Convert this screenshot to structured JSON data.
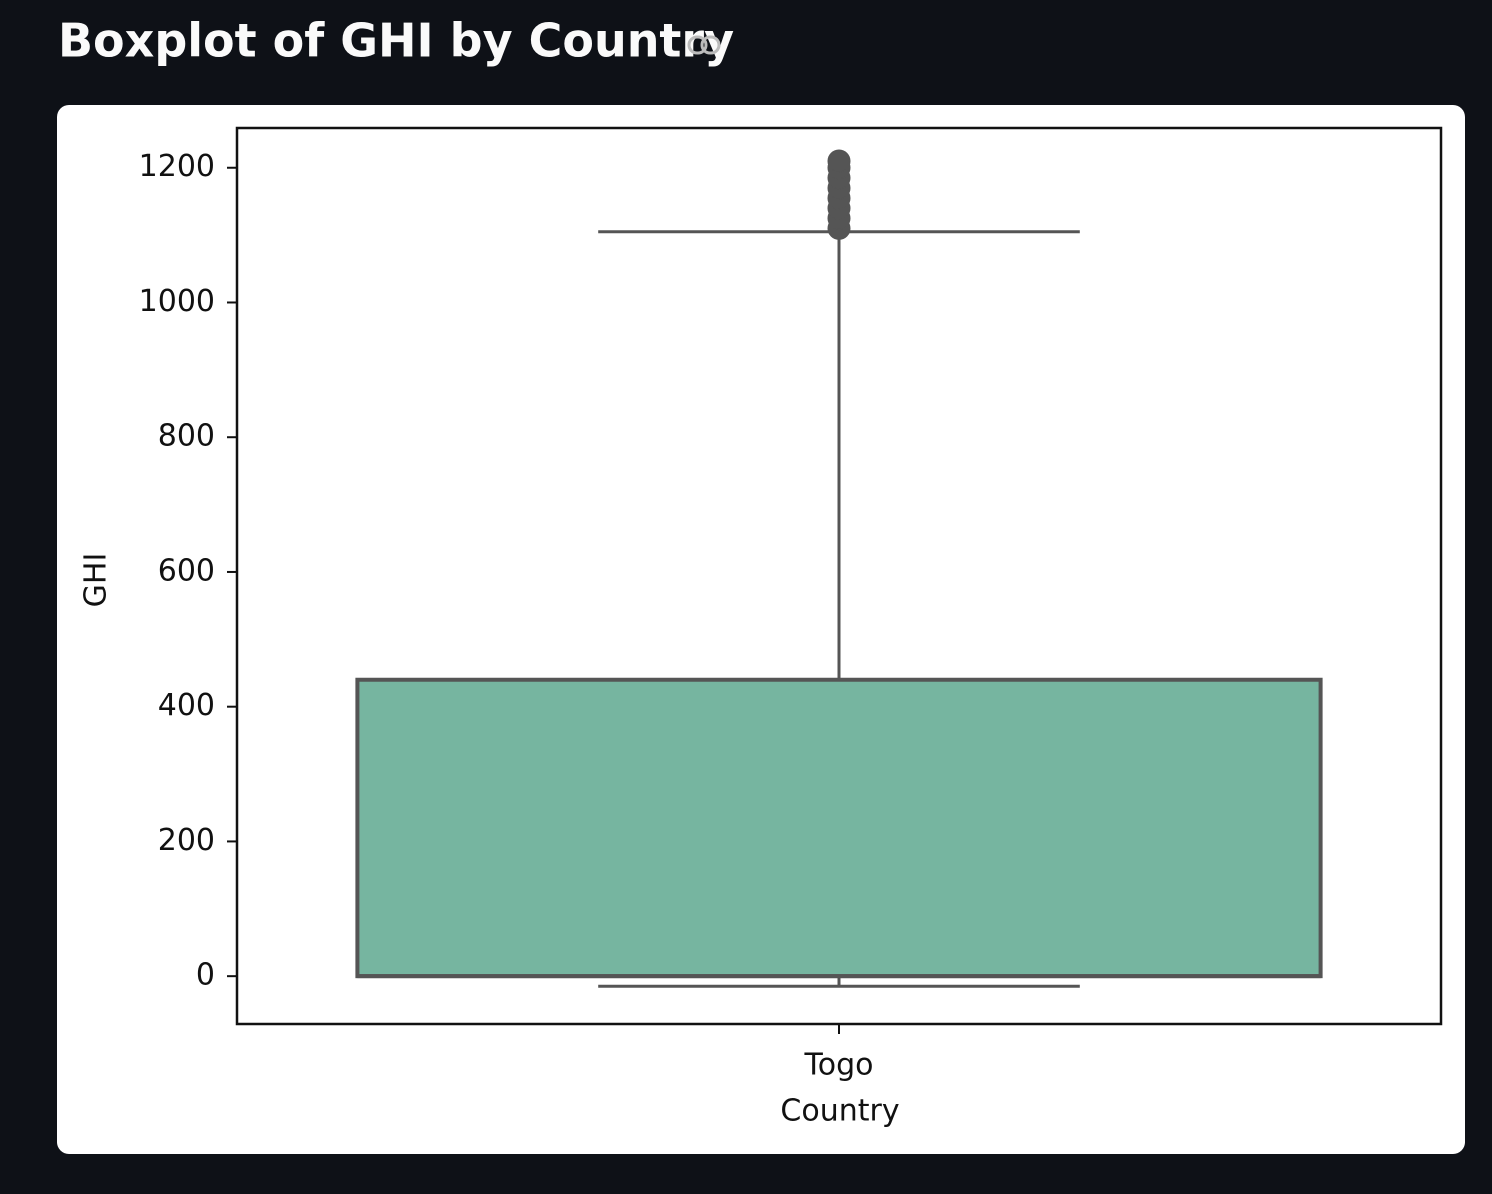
{
  "chart_data": {
    "type": "box",
    "title": "Boxplot of GHI by Country",
    "xlabel": "Country",
    "ylabel": "GHI",
    "categories": [
      "Togo"
    ],
    "boxes": [
      {
        "min": -15,
        "q1": 0,
        "median": 0,
        "q3": 440,
        "max": 1105,
        "outliers": [
          1110,
          1125,
          1140,
          1155,
          1170,
          1185,
          1200,
          1210
        ]
      }
    ],
    "color": "#76b5a0",
    "ylim": [
      -71,
      1259
    ],
    "yticks": [
      0,
      200,
      400,
      600,
      800,
      1000,
      1200
    ],
    "grid": false
  }
}
